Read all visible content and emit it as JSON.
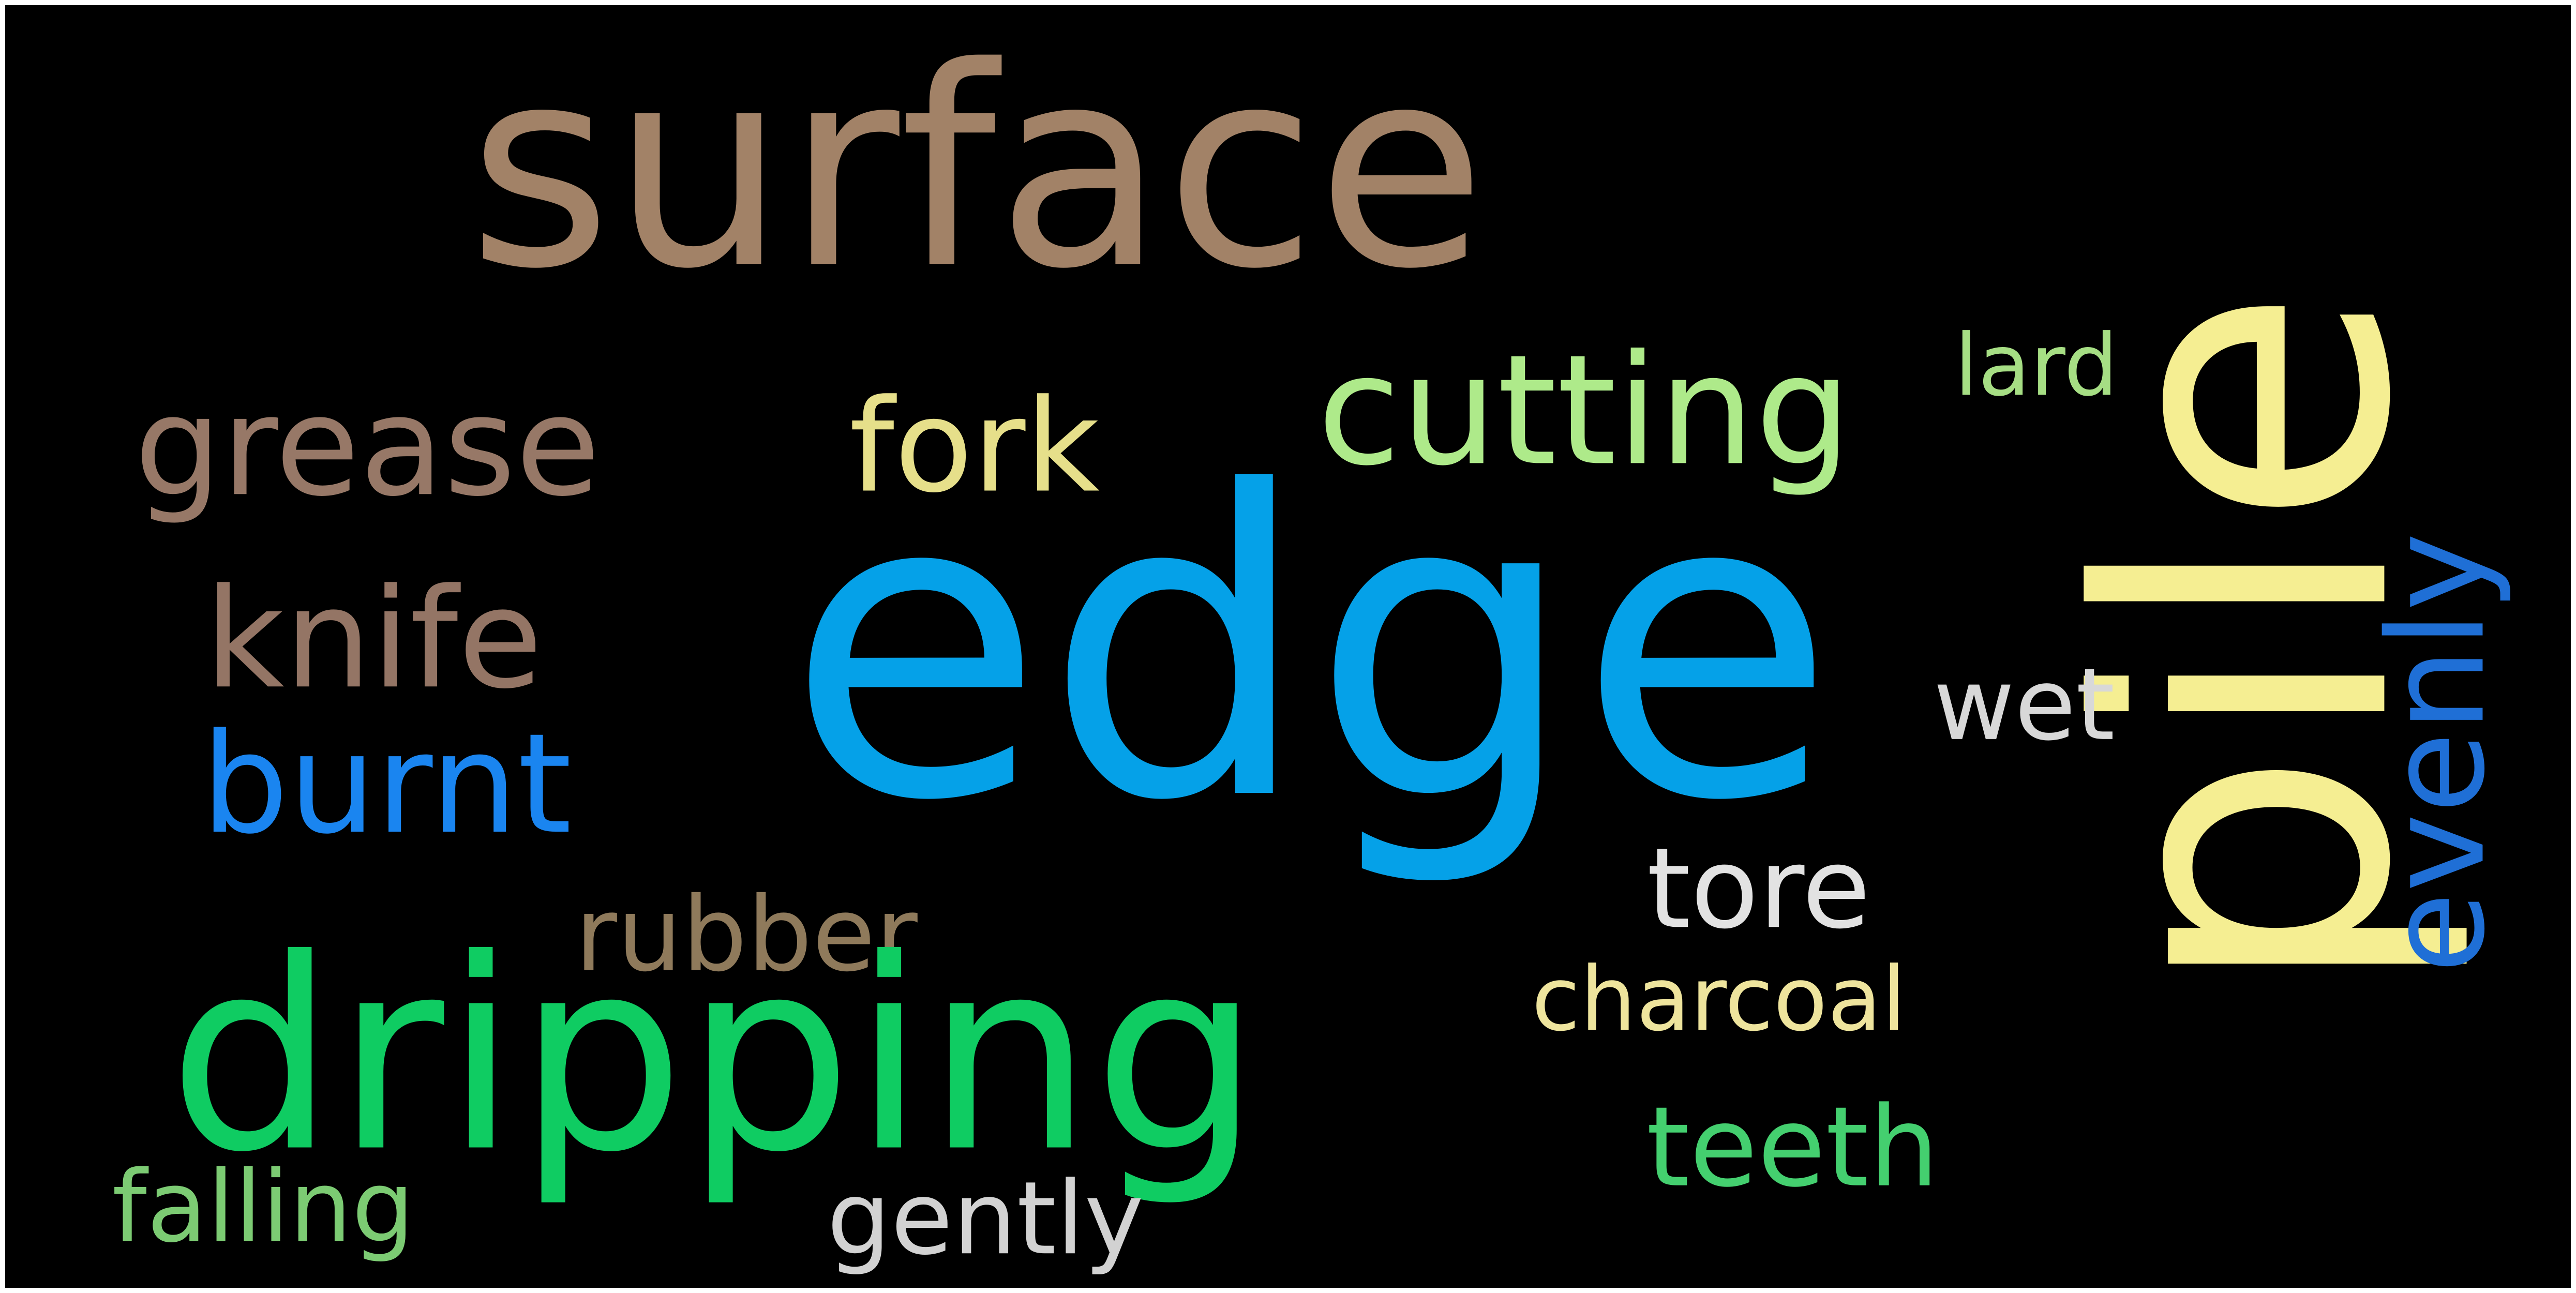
{
  "background_color": "#000000",
  "words": [
    {
      "text": "surface",
      "color": "#A28267",
      "rotated": false
    },
    {
      "text": "pile",
      "color": "#F5EE92",
      "rotated": true
    },
    {
      "text": "edge",
      "color": "#05A1E8",
      "rotated": false
    },
    {
      "text": "grease",
      "color": "#977867",
      "rotated": false
    },
    {
      "text": "fork",
      "color": "#E6DF8A",
      "rotated": false
    },
    {
      "text": "cutting",
      "color": "#AEEA8A",
      "rotated": false
    },
    {
      "text": "lard",
      "color": "#A6DE84",
      "rotated": false
    },
    {
      "text": "evenly",
      "color": "#1F6FD6",
      "rotated": true
    },
    {
      "text": "knife",
      "color": "#947565",
      "rotated": false
    },
    {
      "text": "wet",
      "color": "#D8D8D8",
      "rotated": false
    },
    {
      "text": "burnt",
      "color": "#1A85F0",
      "rotated": false
    },
    {
      "text": "tore",
      "color": "#E2E2E2",
      "rotated": false
    },
    {
      "text": "rubber",
      "color": "#8F7A5B",
      "rotated": false
    },
    {
      "text": "dripping",
      "color": "#0FCC62",
      "rotated": false
    },
    {
      "text": "charcoal",
      "color": "#EEE49D",
      "rotated": false
    },
    {
      "text": "teeth",
      "color": "#44CF6F",
      "rotated": false
    },
    {
      "text": "falling",
      "color": "#7CCB73",
      "rotated": false
    },
    {
      "text": "gently",
      "color": "#D2D2D2",
      "rotated": false
    }
  ]
}
